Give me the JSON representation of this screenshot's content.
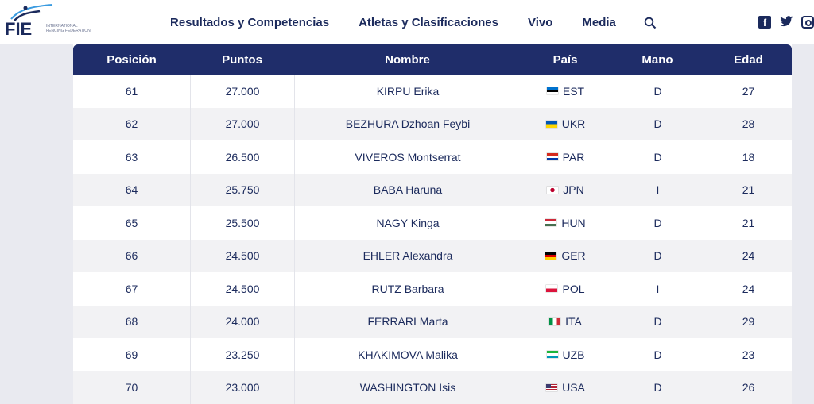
{
  "logo": {
    "text": "FIE",
    "federation": "International Fencing Federation"
  },
  "nav": {
    "items": [
      "Resultados y Competencias",
      "Atletas y Clasificaciones",
      "Vivo",
      "Media"
    ]
  },
  "table": {
    "headers": [
      "Posición",
      "Puntos",
      "Nombre",
      "País",
      "Mano",
      "Edad"
    ],
    "rows": [
      {
        "pos": "61",
        "pts": "27.000",
        "name": "KIRPU Erika",
        "country": "EST",
        "flag": [
          "#0072ce",
          "#000000",
          "#ffffff"
        ],
        "hand": "D",
        "age": "27"
      },
      {
        "pos": "62",
        "pts": "27.000",
        "name": "BEZHURA Dzhoan Feybi",
        "country": "UKR",
        "flag": [
          "#0057b7",
          "#ffd700"
        ],
        "hand": "D",
        "age": "28"
      },
      {
        "pos": "63",
        "pts": "26.500",
        "name": "VIVEROS Montserrat",
        "country": "PAR",
        "flag": [
          "#d52b1e",
          "#ffffff",
          "#0038a8"
        ],
        "hand": "D",
        "age": "18"
      },
      {
        "pos": "64",
        "pts": "25.750",
        "name": "BABA Haruna",
        "country": "JPN",
        "flag": [
          "japan"
        ],
        "hand": "I",
        "age": "21"
      },
      {
        "pos": "65",
        "pts": "25.500",
        "name": "NAGY Kinga",
        "country": "HUN",
        "flag": [
          "#ce2939",
          "#ffffff",
          "#477050"
        ],
        "hand": "D",
        "age": "21"
      },
      {
        "pos": "66",
        "pts": "24.500",
        "name": "EHLER Alexandra",
        "country": "GER",
        "flag": [
          "#000000",
          "#dd0000",
          "#ffce00"
        ],
        "hand": "D",
        "age": "24"
      },
      {
        "pos": "67",
        "pts": "24.500",
        "name": "RUTZ Barbara",
        "country": "POL",
        "flag": [
          "#ffffff",
          "#dc143c"
        ],
        "hand": "I",
        "age": "24"
      },
      {
        "pos": "68",
        "pts": "24.000",
        "name": "FERRARI Marta",
        "country": "ITA",
        "flag": [
          "vertical",
          "#009246",
          "#ffffff",
          "#ce2b37"
        ],
        "hand": "D",
        "age": "29"
      },
      {
        "pos": "69",
        "pts": "23.250",
        "name": "KHAKIMOVA Malika",
        "country": "UZB",
        "flag": [
          "#1eb53a",
          "#ffffff",
          "#0099b5"
        ],
        "hand": "D",
        "age": "23"
      },
      {
        "pos": "70",
        "pts": "23.000",
        "name": "WASHINGTON Isis",
        "country": "USA",
        "flag": [
          "usa"
        ],
        "hand": "D",
        "age": "26"
      }
    ]
  },
  "icons": {
    "search": "search-icon",
    "facebook": "facebook-icon",
    "twitter": "twitter-icon",
    "instagram": "instagram-icon"
  }
}
